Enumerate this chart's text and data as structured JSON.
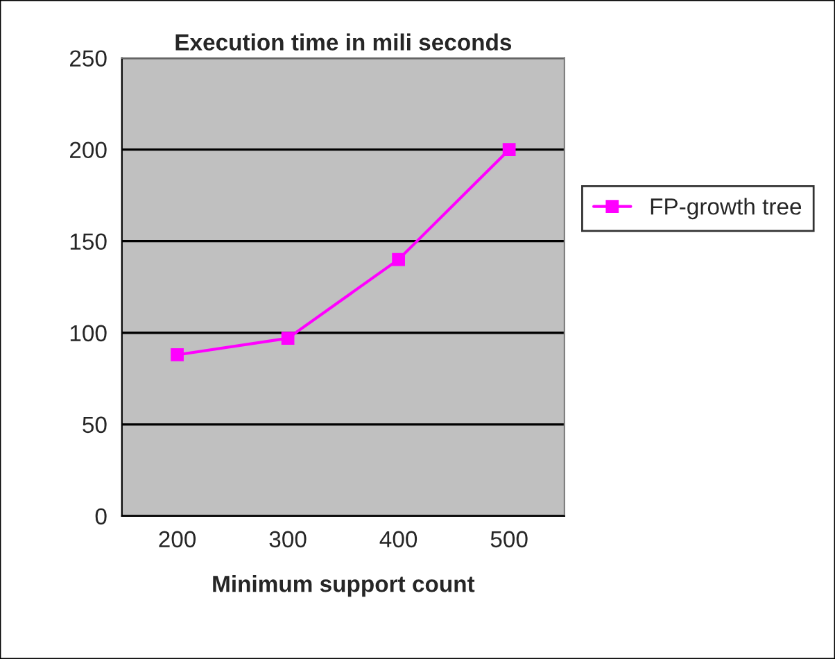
{
  "chart_data": {
    "type": "line",
    "title": "Execution time in mili seconds",
    "xlabel": "Minimum support count",
    "categories": [
      "200",
      "300",
      "400",
      "500"
    ],
    "series": [
      {
        "name": "FP-growth tree",
        "color": "#ff00ff",
        "values": [
          88,
          97,
          140,
          200
        ]
      }
    ],
    "ylim": [
      0,
      250
    ],
    "yticks": [
      0,
      50,
      100,
      150,
      200,
      250
    ],
    "grid": "y",
    "legend": "right",
    "marker": "square",
    "line_style": "solid"
  }
}
